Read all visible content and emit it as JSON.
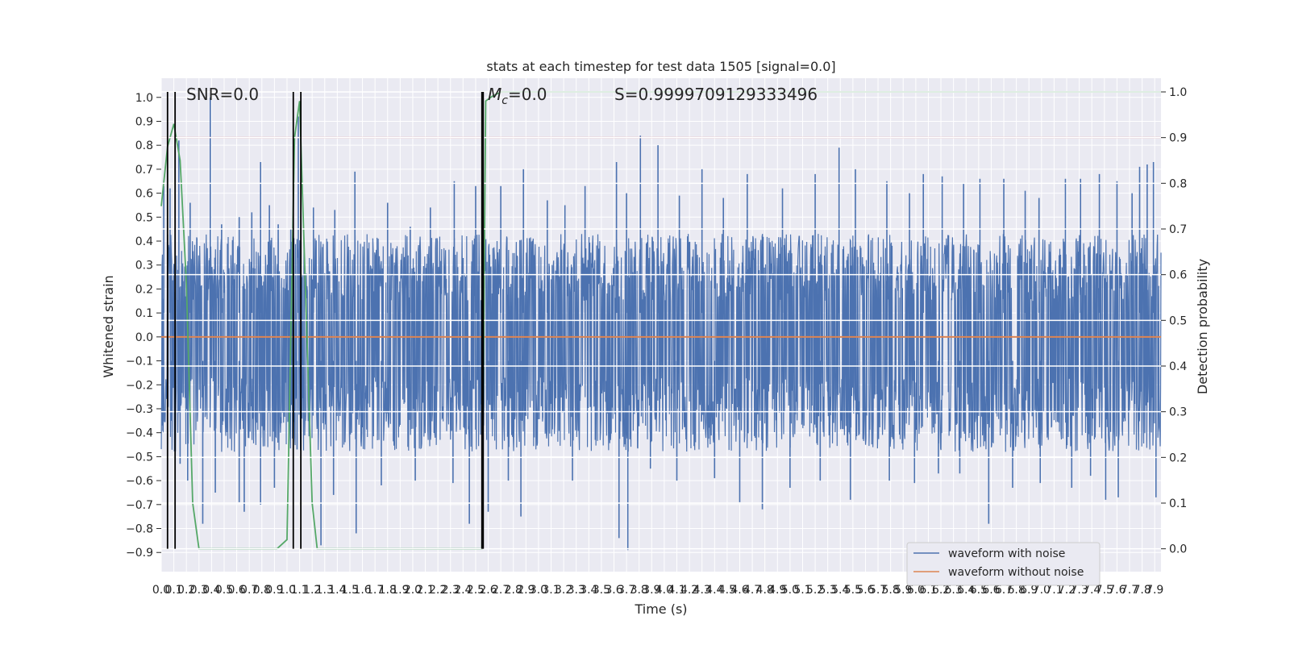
{
  "chart_data": {
    "type": "line",
    "title": "stats at each timestep for test data 1505 [signal=0.0]",
    "xlabel": "Time (s)",
    "ylabel": "Whitened strain",
    "y2label": "Detection probability",
    "xlim": [
      0.0,
      7.95
    ],
    "ylim": [
      -0.98,
      1.08
    ],
    "y2lim": [
      -0.05,
      1.03
    ],
    "x_ticks": [
      0.0,
      0.1,
      0.2,
      0.3,
      0.4,
      0.5,
      0.6,
      0.7,
      0.8,
      0.9,
      1.0,
      1.1,
      1.2,
      1.3,
      1.4,
      1.5,
      1.6,
      1.7,
      1.8,
      1.9,
      2.0,
      2.1,
      2.2,
      2.3,
      2.4,
      2.5,
      2.6,
      2.7,
      2.8,
      2.9,
      3.0,
      3.1,
      3.2,
      3.3,
      3.4,
      3.5,
      3.6,
      3.7,
      3.8,
      3.9,
      4.0,
      4.1,
      4.2,
      4.3,
      4.4,
      4.5,
      4.6,
      4.7,
      4.8,
      4.9,
      5.0,
      5.1,
      5.2,
      5.3,
      5.4,
      5.5,
      5.6,
      5.7,
      5.8,
      5.9,
      6.0,
      6.1,
      6.2,
      6.3,
      6.4,
      6.5,
      6.6,
      6.7,
      6.8,
      6.9,
      7.0,
      7.1,
      7.2,
      7.3,
      7.4,
      7.5,
      7.6,
      7.7,
      7.8,
      7.9
    ],
    "y_ticks": [
      1.0,
      0.9,
      0.8,
      0.7,
      0.6,
      0.5,
      0.4,
      0.3,
      0.2,
      0.1,
      0.0,
      -0.1,
      -0.2,
      -0.3,
      -0.4,
      -0.5,
      -0.6,
      -0.7,
      -0.8,
      -0.9
    ],
    "y2_ticks": [
      1.0,
      0.9,
      0.8,
      0.7,
      0.6,
      0.5,
      0.4,
      0.3,
      0.2,
      0.1,
      0.0
    ],
    "grid": true,
    "legend_position": "lower-right",
    "annotations": {
      "snr": "SNR=0.0",
      "mc_symbol": "M",
      "mc_subscript": "c",
      "mc_value": "=0.0",
      "s": "S=0.9999709129333496"
    },
    "series": [
      {
        "name": "waveform with noise",
        "color": "#4c72b0",
        "peaks_high": [
          [
            0.02,
            0.63
          ],
          [
            0.07,
            0.62
          ],
          [
            0.14,
            0.82
          ],
          [
            0.23,
            0.56
          ],
          [
            0.39,
            1.0
          ],
          [
            0.48,
            0.47
          ],
          [
            0.62,
            0.5
          ],
          [
            0.72,
            0.52
          ],
          [
            0.79,
            0.73
          ],
          [
            0.86,
            0.55
          ],
          [
            0.93,
            0.47
          ],
          [
            1.03,
            0.45
          ],
          [
            1.09,
            0.92
          ],
          [
            1.21,
            0.54
          ],
          [
            1.38,
            0.53
          ],
          [
            1.54,
            0.69
          ],
          [
            1.8,
            0.56
          ],
          [
            1.98,
            0.46
          ],
          [
            2.14,
            0.54
          ],
          [
            2.33,
            0.65
          ],
          [
            2.5,
            0.63
          ],
          [
            2.55,
            0.61
          ],
          [
            2.7,
            0.63
          ],
          [
            2.88,
            0.7
          ],
          [
            3.07,
            0.57
          ],
          [
            3.21,
            0.55
          ],
          [
            3.37,
            0.63
          ],
          [
            3.62,
            0.73
          ],
          [
            3.7,
            0.6
          ],
          [
            3.81,
            0.84
          ],
          [
            3.95,
            0.8
          ],
          [
            4.12,
            0.59
          ],
          [
            4.3,
            0.7
          ],
          [
            4.47,
            0.58
          ],
          [
            4.66,
            0.68
          ],
          [
            4.94,
            0.62
          ],
          [
            5.2,
            0.68
          ],
          [
            5.39,
            0.79
          ],
          [
            5.52,
            0.7
          ],
          [
            5.77,
            0.65
          ],
          [
            5.95,
            0.6
          ],
          [
            6.06,
            0.68
          ],
          [
            6.21,
            0.67
          ],
          [
            6.38,
            0.64
          ],
          [
            6.51,
            0.66
          ],
          [
            6.7,
            0.66
          ],
          [
            6.87,
            0.61
          ],
          [
            6.98,
            0.58
          ],
          [
            7.19,
            0.66
          ],
          [
            7.31,
            0.66
          ],
          [
            7.46,
            0.68
          ],
          [
            7.6,
            0.65
          ],
          [
            7.72,
            0.6
          ],
          [
            7.78,
            0.71
          ],
          [
            7.84,
            0.72
          ],
          [
            7.89,
            0.73
          ]
        ],
        "peaks_low": [
          [
            0.01,
            -0.37
          ],
          [
            0.08,
            -0.35
          ],
          [
            0.15,
            -0.53
          ],
          [
            0.21,
            -0.6
          ],
          [
            0.33,
            -0.78
          ],
          [
            0.43,
            -0.65
          ],
          [
            0.62,
            -0.69
          ],
          [
            0.66,
            -0.73
          ],
          [
            0.79,
            -0.7
          ],
          [
            0.9,
            -0.63
          ],
          [
            1.08,
            -0.47
          ],
          [
            1.27,
            -0.87
          ],
          [
            1.37,
            -0.66
          ],
          [
            1.55,
            -0.82
          ],
          [
            1.75,
            -0.62
          ],
          [
            2.02,
            -0.6
          ],
          [
            2.32,
            -0.61
          ],
          [
            2.45,
            -0.78
          ],
          [
            2.6,
            -0.73
          ],
          [
            2.76,
            -0.6
          ],
          [
            2.86,
            -0.75
          ],
          [
            3.27,
            -0.6
          ],
          [
            3.64,
            -0.84
          ],
          [
            3.71,
            -0.89
          ],
          [
            3.89,
            -0.55
          ],
          [
            4.1,
            -0.6
          ],
          [
            4.4,
            -0.59
          ],
          [
            4.6,
            -0.69
          ],
          [
            4.78,
            -0.72
          ],
          [
            5.0,
            -0.63
          ],
          [
            5.24,
            -0.6
          ],
          [
            5.48,
            -0.68
          ],
          [
            5.79,
            -0.6
          ],
          [
            5.99,
            -0.61
          ],
          [
            6.18,
            -0.57
          ],
          [
            6.35,
            -0.57
          ],
          [
            6.58,
            -0.78
          ],
          [
            6.77,
            -0.63
          ],
          [
            6.99,
            -0.61
          ],
          [
            7.24,
            -0.63
          ],
          [
            7.39,
            -0.58
          ],
          [
            7.51,
            -0.68
          ],
          [
            7.61,
            -0.67
          ],
          [
            7.91,
            -0.67
          ]
        ],
        "envelope_high": 0.43,
        "envelope_low": -0.48
      },
      {
        "name": "waveform without noise",
        "color": "#dd8452",
        "value": 0.0
      },
      {
        "name": "detection probability",
        "color": "#55a868",
        "axis": "right",
        "x": [
          0.0,
          0.05,
          0.1,
          0.15,
          0.2,
          0.25,
          0.3,
          0.4,
          0.5,
          0.6,
          0.7,
          0.8,
          0.9,
          0.92,
          1.0,
          1.06,
          1.1,
          1.2,
          1.24,
          1.3,
          1.5,
          2.0,
          2.5,
          2.55,
          2.58,
          2.63,
          2.7,
          3.0,
          4.0,
          5.0,
          6.0,
          7.0,
          7.95
        ],
        "y": [
          0.75,
          0.88,
          0.93,
          0.85,
          0.58,
          0.1,
          0.0,
          0.0,
          0.0,
          0.0,
          0.0,
          0.0,
          0.0,
          0.0,
          0.02,
          0.9,
          0.98,
          0.1,
          0.0,
          0.0,
          0.0,
          0.0,
          0.0,
          0.0,
          0.98,
          0.99,
          1.0,
          1.0,
          1.0,
          1.0,
          1.0,
          1.0,
          1.0
        ]
      },
      {
        "name": "threshold",
        "color": "#c44e52",
        "axis": "right",
        "value": 0.9
      }
    ],
    "vertical_markers": [
      0.05,
      0.11,
      1.05,
      1.11,
      2.55,
      2.56
    ]
  }
}
